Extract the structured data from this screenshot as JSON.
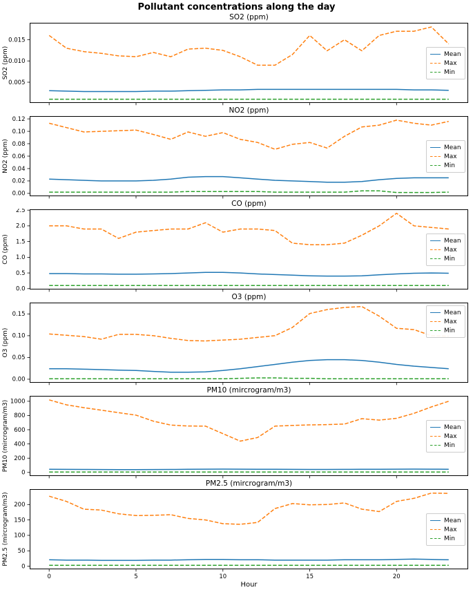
{
  "figure": {
    "title": "Pollutant concentrations along the day",
    "xlabel": "Hour",
    "x_ticks": [
      0,
      5,
      10,
      15,
      20
    ],
    "x_tick_labels": [
      "0",
      "5",
      "10",
      "15",
      "20"
    ]
  },
  "colors": {
    "mean": "#1f77b4",
    "max": "#ff7f0e",
    "min": "#2ca02c",
    "axis": "#000000",
    "legend_border": "#cccccc",
    "background": "#ffffff"
  },
  "legend": {
    "entries": [
      "Mean",
      "Max",
      "Min"
    ]
  },
  "hours": [
    0,
    1,
    2,
    3,
    4,
    5,
    6,
    7,
    8,
    9,
    10,
    11,
    12,
    13,
    14,
    15,
    16,
    17,
    18,
    19,
    20,
    21,
    22,
    23
  ],
  "chart_data": [
    {
      "type": "line",
      "slug": "so2",
      "title": "SO2 (ppm)",
      "ylabel": "SO2 (ppm)",
      "xlabel": "Hour",
      "x": [
        0,
        1,
        2,
        3,
        4,
        5,
        6,
        7,
        8,
        9,
        10,
        11,
        12,
        13,
        14,
        15,
        16,
        17,
        18,
        19,
        20,
        21,
        22,
        23
      ],
      "ylim": [
        0.0002,
        0.0189
      ],
      "yticks": [
        0.005,
        0.01,
        0.015
      ],
      "ytick_labels": [
        "0.005",
        "0.010",
        "0.015"
      ],
      "legend_loc": "center-right",
      "grid": false,
      "series": [
        {
          "name": "Mean",
          "style": "solid",
          "color_key": "mean",
          "values": [
            0.003,
            0.0029,
            0.0028,
            0.0028,
            0.0028,
            0.0028,
            0.0029,
            0.0029,
            0.003,
            0.0031,
            0.0032,
            0.0032,
            0.0033,
            0.0033,
            0.0033,
            0.0033,
            0.0033,
            0.0033,
            0.0033,
            0.0033,
            0.0033,
            0.0032,
            0.0032,
            0.0031
          ]
        },
        {
          "name": "Max",
          "style": "dashed",
          "color_key": "max",
          "values": [
            0.016,
            0.013,
            0.0122,
            0.0118,
            0.0112,
            0.011,
            0.012,
            0.011,
            0.0128,
            0.013,
            0.0125,
            0.011,
            0.009,
            0.009,
            0.0115,
            0.016,
            0.0124,
            0.015,
            0.0124,
            0.016,
            0.017,
            0.017,
            0.018,
            0.014
          ]
        },
        {
          "name": "Min",
          "style": "dashed",
          "color_key": "min",
          "values": [
            0.001,
            0.001,
            0.001,
            0.001,
            0.001,
            0.001,
            0.001,
            0.001,
            0.001,
            0.001,
            0.001,
            0.001,
            0.001,
            0.001,
            0.001,
            0.001,
            0.001,
            0.001,
            0.001,
            0.001,
            0.001,
            0.001,
            0.001,
            0.001
          ]
        }
      ]
    },
    {
      "type": "line",
      "slug": "no2",
      "title": "NO2 (ppm)",
      "ylabel": "NO2 (ppm)",
      "xlabel": "Hour",
      "x": [
        0,
        1,
        2,
        3,
        4,
        5,
        6,
        7,
        8,
        9,
        10,
        11,
        12,
        13,
        14,
        15,
        16,
        17,
        18,
        19,
        20,
        21,
        22,
        23
      ],
      "ylim": [
        -0.004,
        0.124
      ],
      "yticks": [
        0,
        0.02,
        0.04,
        0.06,
        0.08,
        0.1,
        0.12
      ],
      "ytick_labels": [
        "0.00",
        "0.02",
        "0.04",
        "0.06",
        "0.08",
        "0.10",
        "0.12"
      ],
      "legend_loc": "center-right",
      "grid": false,
      "series": [
        {
          "name": "Mean",
          "style": "solid",
          "color_key": "mean",
          "values": [
            0.023,
            0.022,
            0.021,
            0.02,
            0.02,
            0.02,
            0.021,
            0.023,
            0.026,
            0.027,
            0.027,
            0.025,
            0.023,
            0.021,
            0.02,
            0.019,
            0.018,
            0.018,
            0.019,
            0.022,
            0.024,
            0.025,
            0.025,
            0.025
          ]
        },
        {
          "name": "Max",
          "style": "dashed",
          "color_key": "max",
          "values": [
            0.113,
            0.106,
            0.099,
            0.1,
            0.101,
            0.102,
            0.095,
            0.087,
            0.099,
            0.092,
            0.098,
            0.087,
            0.082,
            0.071,
            0.079,
            0.082,
            0.073,
            0.092,
            0.107,
            0.11,
            0.118,
            0.113,
            0.11,
            0.116
          ]
        },
        {
          "name": "Min",
          "style": "dashed",
          "color_key": "min",
          "values": [
            0.002,
            0.002,
            0.002,
            0.002,
            0.002,
            0.002,
            0.002,
            0.002,
            0.003,
            0.003,
            0.003,
            0.003,
            0.003,
            0.002,
            0.002,
            0.002,
            0.002,
            0.002,
            0.004,
            0.004,
            0.0015,
            0.0015,
            0.0015,
            0.002
          ]
        }
      ]
    },
    {
      "type": "line",
      "slug": "co",
      "title": "CO (ppm)",
      "ylabel": "CO (ppm)",
      "xlabel": "Hour",
      "x": [
        0,
        1,
        2,
        3,
        4,
        5,
        6,
        7,
        8,
        9,
        10,
        11,
        12,
        13,
        14,
        15,
        16,
        17,
        18,
        19,
        20,
        21,
        22,
        23
      ],
      "ylim": [
        -0.015,
        2.515
      ],
      "yticks": [
        0,
        0.5,
        1,
        1.5,
        2,
        2.5
      ],
      "ytick_labels": [
        "0.0",
        "0.5",
        "1.0",
        "1.5",
        "2.0",
        "2.5"
      ],
      "legend_loc": "center-right",
      "grid": false,
      "series": [
        {
          "name": "Mean",
          "style": "solid",
          "color_key": "mean",
          "values": [
            0.48,
            0.48,
            0.47,
            0.47,
            0.46,
            0.46,
            0.47,
            0.48,
            0.5,
            0.52,
            0.52,
            0.5,
            0.47,
            0.45,
            0.43,
            0.41,
            0.4,
            0.4,
            0.41,
            0.44,
            0.47,
            0.49,
            0.5,
            0.49
          ]
        },
        {
          "name": "Max",
          "style": "dashed",
          "color_key": "max",
          "values": [
            2.0,
            2.0,
            1.9,
            1.9,
            1.6,
            1.8,
            1.85,
            1.9,
            1.9,
            2.1,
            1.8,
            1.9,
            1.9,
            1.85,
            1.45,
            1.4,
            1.4,
            1.45,
            1.7,
            2.0,
            2.4,
            2.0,
            1.95,
            1.9
          ]
        },
        {
          "name": "Min",
          "style": "dashed",
          "color_key": "min",
          "values": [
            0.1,
            0.1,
            0.1,
            0.1,
            0.1,
            0.1,
            0.1,
            0.1,
            0.1,
            0.1,
            0.1,
            0.1,
            0.1,
            0.1,
            0.1,
            0.1,
            0.1,
            0.1,
            0.1,
            0.1,
            0.1,
            0.1,
            0.1,
            0.1
          ]
        }
      ]
    },
    {
      "type": "line",
      "slug": "o3",
      "title": "O3 (ppm)",
      "ylabel": "O3 (ppm)",
      "xlabel": "Hour",
      "x": [
        0,
        1,
        2,
        3,
        4,
        5,
        6,
        7,
        8,
        9,
        10,
        11,
        12,
        13,
        14,
        15,
        16,
        17,
        18,
        19,
        20,
        21,
        22,
        23
      ],
      "ylim": [
        -0.0073,
        0.1753
      ],
      "yticks": [
        0,
        0.05,
        0.1,
        0.15
      ],
      "ytick_labels": [
        "0.00",
        "0.05",
        "0.10",
        "0.15"
      ],
      "legend_loc": "upper-right",
      "grid": false,
      "series": [
        {
          "name": "Mean",
          "style": "solid",
          "color_key": "mean",
          "values": [
            0.024,
            0.024,
            0.023,
            0.022,
            0.021,
            0.02,
            0.018,
            0.016,
            0.016,
            0.017,
            0.02,
            0.024,
            0.029,
            0.034,
            0.039,
            0.043,
            0.045,
            0.045,
            0.043,
            0.039,
            0.034,
            0.03,
            0.027,
            0.024
          ]
        },
        {
          "name": "Max",
          "style": "dashed",
          "color_key": "max",
          "values": [
            0.104,
            0.101,
            0.098,
            0.092,
            0.103,
            0.103,
            0.1,
            0.094,
            0.089,
            0.088,
            0.09,
            0.092,
            0.096,
            0.1,
            0.119,
            0.151,
            0.16,
            0.165,
            0.167,
            0.145,
            0.117,
            0.114,
            0.1,
            0.099
          ]
        },
        {
          "name": "Min",
          "style": "dashed",
          "color_key": "min",
          "values": [
            0.001,
            0.001,
            0.001,
            0.001,
            0.001,
            0.001,
            0.001,
            0.001,
            0.001,
            0.001,
            0.001,
            0.002,
            0.003,
            0.003,
            0.002,
            0.002,
            0.001,
            0.001,
            0.001,
            0.001,
            0.001,
            0.001,
            0.001,
            0.001
          ]
        }
      ]
    },
    {
      "type": "line",
      "slug": "pm10",
      "title": "PM10 (mircrogram/m3)",
      "ylabel": "PM10 (mircrogram/m3)",
      "xlabel": "Hour",
      "x": [
        0,
        1,
        2,
        3,
        4,
        5,
        6,
        7,
        8,
        9,
        10,
        11,
        12,
        13,
        14,
        15,
        16,
        17,
        18,
        19,
        20,
        21,
        22,
        23
      ],
      "ylim": [
        -46,
        1071
      ],
      "yticks": [
        0,
        200,
        400,
        600,
        800,
        1000
      ],
      "ytick_labels": [
        "0",
        "200",
        "400",
        "600",
        "800",
        "1000"
      ],
      "legend_loc": "center-right",
      "grid": false,
      "series": [
        {
          "name": "Mean",
          "style": "solid",
          "color_key": "mean",
          "values": [
            44,
            42,
            41,
            40,
            39,
            39,
            40,
            41,
            43,
            45,
            46,
            45,
            44,
            43,
            42,
            41,
            41,
            42,
            43,
            44,
            45,
            46,
            45,
            44
          ]
        },
        {
          "name": "Max",
          "style": "dashed",
          "color_key": "max",
          "values": [
            1020,
            950,
            910,
            875,
            840,
            805,
            720,
            665,
            652,
            650,
            545,
            440,
            490,
            650,
            660,
            668,
            672,
            680,
            755,
            735,
            760,
            830,
            920,
            1000
          ]
        },
        {
          "name": "Min",
          "style": "dashed",
          "color_key": "min",
          "values": [
            5,
            5,
            5,
            5,
            5,
            5,
            5,
            5,
            5,
            5,
            5,
            5,
            5,
            5,
            5,
            5,
            5,
            5,
            5,
            5,
            5,
            5,
            5,
            5
          ]
        }
      ]
    },
    {
      "type": "line",
      "slug": "pm2-5",
      "title": "PM2.5 (mircrogram/m3)",
      "ylabel": "PM2.5 (mircrogram/m3)",
      "xlabel": "Hour",
      "x": [
        0,
        1,
        2,
        3,
        4,
        5,
        6,
        7,
        8,
        9,
        10,
        11,
        12,
        13,
        14,
        15,
        16,
        17,
        18,
        19,
        20,
        21,
        22,
        23
      ],
      "ylim": [
        -8.7,
        248.7
      ],
      "yticks": [
        0,
        50,
        100,
        150,
        200
      ],
      "ytick_labels": [
        "0",
        "50",
        "100",
        "150",
        "200"
      ],
      "legend_loc": "center-right",
      "grid": false,
      "series": [
        {
          "name": "Mean",
          "style": "solid",
          "color_key": "mean",
          "values": [
            21,
            20,
            20,
            19,
            19,
            19,
            20,
            20,
            21,
            22,
            22,
            21,
            21,
            20,
            20,
            20,
            20,
            21,
            21,
            21,
            22,
            23,
            22,
            21
          ]
        },
        {
          "name": "Max",
          "style": "dashed",
          "color_key": "max",
          "values": [
            227,
            210,
            185,
            182,
            170,
            164,
            165,
            167,
            155,
            150,
            138,
            136,
            142,
            187,
            203,
            199,
            200,
            205,
            185,
            177,
            210,
            220,
            237,
            236
          ]
        },
        {
          "name": "Min",
          "style": "dashed",
          "color_key": "min",
          "values": [
            3,
            3,
            3,
            3,
            3,
            3,
            3,
            3,
            3,
            3,
            3,
            3,
            3,
            3,
            3,
            3,
            3,
            3,
            3,
            3,
            3,
            3,
            3,
            3
          ]
        }
      ]
    }
  ]
}
